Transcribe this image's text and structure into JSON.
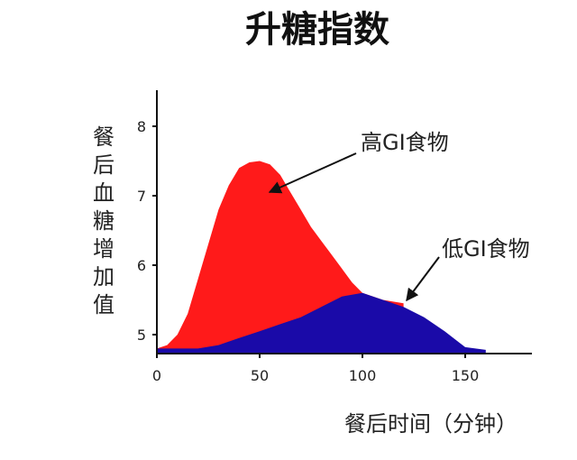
{
  "chart_data": {
    "type": "area",
    "title": "升糖指数",
    "xlabel": "餐后时间（分钟）",
    "ylabel": "餐后血糖增加值",
    "xlim": [
      0,
      180
    ],
    "ylim": [
      4.7,
      8.5
    ],
    "x_ticks": [
      0,
      50,
      100,
      150
    ],
    "x_tick_labels": [
      "0",
      "50",
      "100",
      "150"
    ],
    "y_ticks": [
      5,
      6,
      7,
      8
    ],
    "y_tick_labels": [
      "5",
      "6",
      "7",
      "8"
    ],
    "grid": false,
    "legend": "none",
    "series": [
      {
        "name": "高GI食物",
        "color": "#ff1a1a",
        "x": [
          0,
          5,
          10,
          15,
          20,
          25,
          30,
          35,
          40,
          45,
          50,
          55,
          60,
          65,
          70,
          75,
          80,
          85,
          90,
          95,
          100,
          110,
          120
        ],
        "y": [
          4.8,
          4.85,
          5.0,
          5.3,
          5.8,
          6.3,
          6.8,
          7.15,
          7.4,
          7.48,
          7.5,
          7.45,
          7.3,
          7.05,
          6.8,
          6.55,
          6.35,
          6.15,
          5.95,
          5.75,
          5.6,
          5.5,
          5.45
        ]
      },
      {
        "name": "低GI食物",
        "color": "#1a0aa8",
        "x": [
          0,
          10,
          20,
          30,
          40,
          50,
          60,
          70,
          80,
          90,
          100,
          110,
          120,
          130,
          140,
          150,
          160
        ],
        "y": [
          4.8,
          4.8,
          4.8,
          4.85,
          4.95,
          5.05,
          5.15,
          5.25,
          5.4,
          5.55,
          5.6,
          5.5,
          5.4,
          5.25,
          5.05,
          4.82,
          4.78
        ]
      }
    ],
    "annotations": [
      {
        "text": "高GI食物",
        "target_x": 55,
        "target_y": 7.0
      },
      {
        "text": "低GI食物",
        "target_x": 120,
        "target_y": 5.45
      }
    ]
  }
}
